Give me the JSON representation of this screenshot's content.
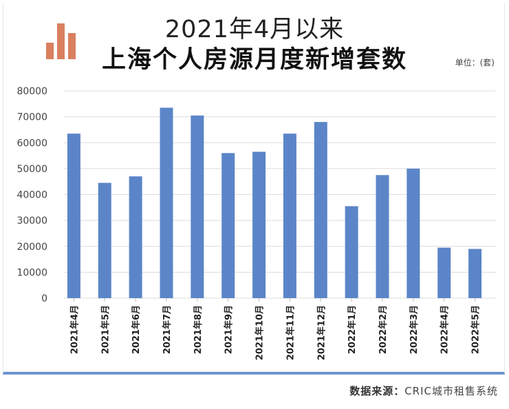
{
  "header": {
    "title_line1": "2021年4月以来",
    "title_line2": "上海个人房源月度新增套数",
    "unit": "单位：(套)"
  },
  "footer": {
    "source_label": "数据来源：",
    "source_value": "CRIC城市租售系统"
  },
  "colors": {
    "bar": "#5b85c8",
    "grid": "#dcdcdc",
    "logo": "#d9805e"
  },
  "chart_data": {
    "type": "bar",
    "title": "上海个人房源月度新增套数",
    "categories": [
      "2021年4月",
      "2021年5月",
      "2021年6月",
      "2021年7月",
      "2021年8月",
      "2021年9月",
      "2021年10月",
      "2021年11月",
      "2021年12月",
      "2022年1月",
      "2022年2月",
      "2022年3月",
      "2022年4月",
      "2022年5月"
    ],
    "values": [
      63500,
      44500,
      47000,
      73500,
      70500,
      56000,
      56500,
      63500,
      68000,
      35500,
      47500,
      50000,
      19500,
      19000
    ],
    "yticks": [
      0,
      10000,
      20000,
      30000,
      40000,
      50000,
      60000,
      70000,
      80000
    ],
    "ylim": [
      0,
      80000
    ],
    "grid": true,
    "legend": "none",
    "unit": "单位：(套)"
  }
}
